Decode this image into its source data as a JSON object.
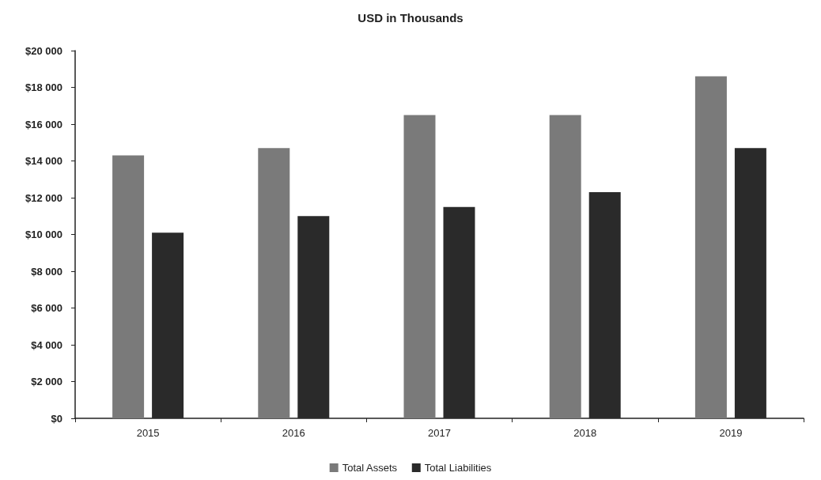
{
  "chart_data": {
    "type": "bar",
    "title": "USD in Thousands",
    "categories": [
      "2015",
      "2016",
      "2017",
      "2018",
      "2019"
    ],
    "series": [
      {
        "name": "Total Assets",
        "color": "#7a7a7a",
        "values": [
          14300,
          14700,
          16500,
          16500,
          18600
        ]
      },
      {
        "name": "Total Liabilities",
        "color": "#2a2a2a",
        "values": [
          10100,
          11000,
          11500,
          12300,
          14700
        ]
      }
    ],
    "ylim": [
      0,
      20000
    ],
    "yticks": [
      {
        "value": 0,
        "label": "$0"
      },
      {
        "value": 2000,
        "label": "$2 000"
      },
      {
        "value": 4000,
        "label": "$4 000"
      },
      {
        "value": 6000,
        "label": "$6 000"
      },
      {
        "value": 8000,
        "label": "$8 000"
      },
      {
        "value": 10000,
        "label": "$10 000"
      },
      {
        "value": 12000,
        "label": "$12 000"
      },
      {
        "value": 14000,
        "label": "$14 000"
      },
      {
        "value": 16000,
        "label": "$16 000"
      },
      {
        "value": 18000,
        "label": "$18 000"
      },
      {
        "value": 20000,
        "label": "$20 000"
      }
    ],
    "grid": false,
    "legend": "bottom"
  }
}
